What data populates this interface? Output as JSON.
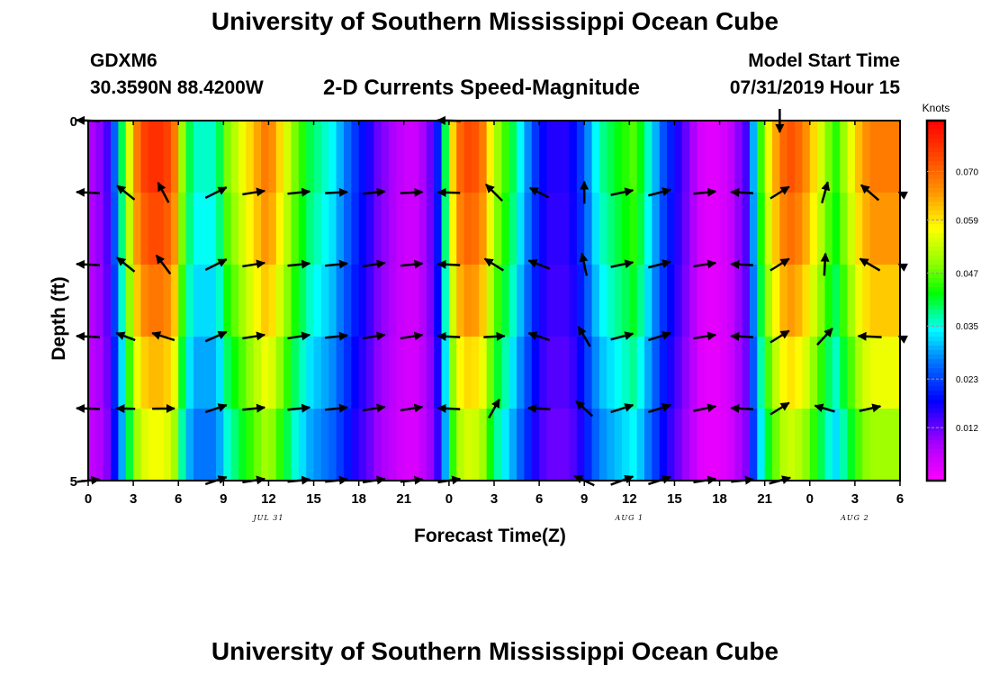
{
  "header": {
    "title": "University of Southern Mississippi Ocean Cube",
    "station_id": "GDXM6",
    "station_coords": "30.3590N 88.4200W",
    "plot_title": "2-D Currents Speed-Magnitude",
    "model_start_label": "Model Start Time",
    "model_start_value": "07/31/2019 Hour 15"
  },
  "footer": {
    "title": "University of Southern Mississippi Ocean Cube"
  },
  "chart_data": {
    "type": "heatmap",
    "xlabel": "Forecast Time(Z)",
    "ylabel": "Depth (ft)",
    "colorbar_label": "Knots",
    "colorbar_ticks": [
      "0.070",
      "0.059",
      "0.047",
      "0.035",
      "0.023",
      "0.012"
    ],
    "colorbar_tick_values": [
      0.07,
      0.059,
      0.047,
      0.035,
      0.023,
      0.012
    ],
    "colorbar_range": [
      0.0,
      0.0815
    ],
    "x_tick_labels": [
      "0",
      "3",
      "6",
      "9",
      "12",
      "15",
      "18",
      "21",
      "0",
      "3",
      "6",
      "9",
      "12",
      "15",
      "18",
      "21",
      "0",
      "3",
      "6"
    ],
    "x_range_hours": [
      0,
      54
    ],
    "date_labels": [
      {
        "label": "JUL 31",
        "hour": 12
      },
      {
        "label": "AUG 1",
        "hour": 36
      },
      {
        "label": "AUG 2",
        "hour": 51
      }
    ],
    "y_tick_labels": [
      "0",
      "5"
    ],
    "y_range_ft": [
      0,
      5
    ],
    "depth_rows": 5,
    "column_hours": [
      0,
      0.5,
      1,
      1.5,
      2,
      2.5,
      3,
      3.5,
      4,
      4.5,
      5,
      5.5,
      6,
      6.5,
      7,
      7.5,
      8,
      8.5,
      9,
      9.5,
      10,
      10.5,
      11,
      11.5,
      12,
      12.5,
      13,
      13.5,
      14,
      14.5,
      15,
      15.5,
      16,
      16.5,
      17,
      17.5,
      18,
      18.5,
      19,
      19.5,
      20,
      20.5,
      21,
      21.5,
      22,
      22.5,
      23,
      23.5,
      24,
      24.5,
      25,
      25.5,
      26,
      26.5,
      27,
      27.5,
      28,
      28.5,
      29,
      29.5,
      30,
      30.5,
      31,
      31.5,
      32,
      32.5,
      33,
      33.5,
      34,
      34.5,
      35,
      35.5,
      36,
      36.5,
      37,
      37.5,
      38,
      38.5,
      39,
      39.5,
      40,
      40.5,
      41,
      41.5,
      42,
      42.5,
      43,
      43.5,
      44,
      44.5,
      45,
      45.5,
      46,
      46.5,
      47,
      47.5,
      48,
      48.5,
      49,
      49.5,
      50,
      50.5,
      51,
      51.5,
      52,
      52.5,
      53,
      53.5
    ],
    "speed_knots": [
      0.008,
      0.01,
      0.014,
      0.025,
      0.04,
      0.055,
      0.068,
      0.074,
      0.076,
      0.076,
      0.074,
      0.068,
      0.05,
      0.04,
      0.036,
      0.036,
      0.036,
      0.04,
      0.048,
      0.052,
      0.056,
      0.06,
      0.064,
      0.068,
      0.066,
      0.06,
      0.054,
      0.048,
      0.044,
      0.04,
      0.038,
      0.036,
      0.034,
      0.03,
      0.026,
      0.022,
      0.019,
      0.016,
      0.012,
      0.01,
      0.008,
      0.006,
      0.005,
      0.005,
      0.008,
      0.012,
      0.02,
      0.04,
      0.06,
      0.07,
      0.073,
      0.072,
      0.068,
      0.058,
      0.05,
      0.045,
      0.04,
      0.034,
      0.028,
      0.022,
      0.018,
      0.016,
      0.016,
      0.016,
      0.018,
      0.022,
      0.028,
      0.034,
      0.038,
      0.04,
      0.042,
      0.044,
      0.046,
      0.042,
      0.036,
      0.03,
      0.024,
      0.02,
      0.016,
      0.012,
      0.008,
      0.004,
      0.003,
      0.003,
      0.004,
      0.006,
      0.01,
      0.014,
      0.03,
      0.045,
      0.056,
      0.064,
      0.07,
      0.072,
      0.07,
      0.066,
      0.06,
      0.054,
      0.048,
      0.044,
      0.05,
      0.056,
      0.062,
      0.066,
      0.068,
      0.068,
      0.068,
      0.068
    ],
    "depth_speed_factor": [
      1.0,
      0.96,
      0.9,
      0.82,
      0.74
    ],
    "vector_hours": [
      0,
      2.5,
      5,
      8.5,
      11,
      14,
      16.5,
      19,
      21.5,
      24,
      27,
      30,
      33,
      35.5,
      38,
      41,
      43.5,
      46,
      49,
      52,
      54
    ],
    "vectors": [
      [
        [
          -2.0,
          0.08
        ],
        [
          0,
          0
        ],
        [
          0,
          0
        ],
        [
          0,
          0
        ],
        [
          0,
          0
        ],
        [
          0,
          0
        ],
        [
          0,
          0
        ],
        [
          0,
          0
        ],
        [
          0,
          0
        ],
        [
          -2.0,
          0.05
        ],
        [
          0,
          0
        ],
        [
          0,
          0
        ],
        [
          0,
          0
        ],
        [
          0,
          0
        ],
        [
          0,
          0
        ],
        [
          0,
          0
        ],
        [
          0,
          0
        ],
        [
          0,
          -2.0
        ],
        [
          0,
          0
        ],
        [
          0,
          0
        ],
        [
          0,
          0
        ]
      ],
      [
        [
          -2.0,
          0.1
        ],
        [
          -1.5,
          1.2
        ],
        [
          -0.9,
          1.7
        ],
        [
          1.8,
          0.9
        ],
        [
          1.9,
          0.3
        ],
        [
          1.9,
          0.2
        ],
        [
          1.9,
          0.1
        ],
        [
          1.9,
          0.2
        ],
        [
          1.9,
          0.1
        ],
        [
          -1.9,
          0.05
        ],
        [
          -1.4,
          1.4
        ],
        [
          -1.6,
          0.8
        ],
        [
          0.0,
          1.9
        ],
        [
          1.9,
          0.4
        ],
        [
          1.9,
          0.5
        ],
        [
          1.9,
          0.2
        ],
        [
          -1.9,
          0.1
        ],
        [
          1.6,
          1.0
        ],
        [
          0.5,
          1.8
        ],
        [
          -1.5,
          1.3
        ],
        [
          -0.2,
          0.1
        ]
      ],
      [
        [
          -2.0,
          0.1
        ],
        [
          -1.5,
          1.2
        ],
        [
          -1.2,
          1.6
        ],
        [
          1.8,
          0.9
        ],
        [
          1.9,
          0.3
        ],
        [
          1.9,
          0.2
        ],
        [
          1.9,
          0.2
        ],
        [
          1.9,
          0.3
        ],
        [
          1.9,
          0.2
        ],
        [
          -1.9,
          0.1
        ],
        [
          -1.6,
          1.0
        ],
        [
          -1.8,
          0.7
        ],
        [
          -0.4,
          1.9
        ],
        [
          1.9,
          0.4
        ],
        [
          1.9,
          0.5
        ],
        [
          1.9,
          0.3
        ],
        [
          -1.9,
          0.1
        ],
        [
          1.6,
          1.0
        ],
        [
          0.1,
          1.9
        ],
        [
          -1.7,
          1.0
        ],
        [
          -0.2,
          0.1
        ]
      ],
      [
        [
          -2.0,
          0.1
        ],
        [
          -1.6,
          0.6
        ],
        [
          -1.9,
          0.6
        ],
        [
          1.8,
          0.8
        ],
        [
          1.9,
          0.3
        ],
        [
          1.9,
          0.3
        ],
        [
          1.9,
          0.2
        ],
        [
          1.9,
          0.3
        ],
        [
          1.9,
          0.3
        ],
        [
          -1.9,
          0.1
        ],
        [
          1.8,
          0.1
        ],
        [
          -1.8,
          0.6
        ],
        [
          -1.0,
          1.7
        ],
        [
          1.9,
          0.5
        ],
        [
          1.9,
          0.6
        ],
        [
          1.9,
          0.3
        ],
        [
          -1.9,
          0.1
        ],
        [
          1.6,
          1.0
        ],
        [
          1.3,
          1.4
        ],
        [
          -2.0,
          0.1
        ],
        [
          -0.2,
          0.1
        ]
      ],
      [
        [
          -2.0,
          0.05
        ],
        [
          -1.6,
          0.03
        ],
        [
          1.9,
          0.02
        ],
        [
          1.8,
          0.6
        ],
        [
          1.9,
          0.2
        ],
        [
          1.9,
          0.2
        ],
        [
          1.9,
          0.2
        ],
        [
          1.9,
          0.3
        ],
        [
          1.9,
          0.3
        ],
        [
          -1.9,
          0.1
        ],
        [
          0.9,
          1.6
        ],
        [
          -1.9,
          0.1
        ],
        [
          -1.4,
          1.3
        ],
        [
          1.9,
          0.6
        ],
        [
          1.9,
          0.6
        ],
        [
          1.9,
          0.4
        ],
        [
          -1.9,
          0.1
        ],
        [
          1.6,
          1.0
        ],
        [
          -1.7,
          0.5
        ],
        [
          1.8,
          0.4
        ],
        [
          0,
          0
        ]
      ],
      [
        [
          1.9,
          0.2
        ],
        [
          0,
          0
        ],
        [
          0,
          0
        ],
        [
          1.8,
          0.6
        ],
        [
          1.9,
          0.3
        ],
        [
          1.9,
          0.2
        ],
        [
          1.9,
          0.2
        ],
        [
          1.9,
          0.3
        ],
        [
          1.9,
          0.2
        ],
        [
          1.9,
          0.3
        ],
        [
          0,
          0
        ],
        [
          0,
          0
        ],
        [
          -1.7,
          0.8
        ],
        [
          1.9,
          0.7
        ],
        [
          1.9,
          0.6
        ],
        [
          1.9,
          0.3
        ],
        [
          1.9,
          0.2
        ],
        [
          1.8,
          0.5
        ],
        [
          0,
          0
        ],
        [
          0,
          0
        ],
        [
          0,
          0
        ]
      ]
    ]
  }
}
